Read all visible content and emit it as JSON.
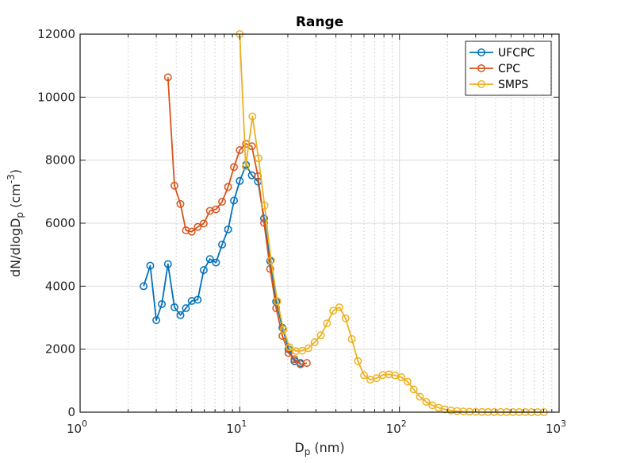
{
  "chart_data": {
    "type": "line",
    "title": "Range",
    "xlabel": {
      "main": "D",
      "sub": "p",
      "unit": " (nm)"
    },
    "ylabel": {
      "pre": "dN/dlogD",
      "sub": "p",
      "unit_open": "  (cm",
      "sup": "-3",
      "unit_close": ")"
    },
    "x_scale": "log",
    "xlim": [
      1,
      1000
    ],
    "ylim": [
      0,
      12000
    ],
    "x_ticks": [
      {
        "base": "10",
        "exp": "0"
      },
      {
        "base": "10",
        "exp": "1"
      },
      {
        "base": "10",
        "exp": "2"
      },
      {
        "base": "10",
        "exp": "3"
      }
    ],
    "y_ticks": [
      "0",
      "2000",
      "4000",
      "6000",
      "8000",
      "10000",
      "12000"
    ],
    "grid": true,
    "legend_position": "top-right",
    "series": [
      {
        "name": "UFCPC",
        "color": "#0072BD",
        "marker": "open-circle",
        "points": [
          [
            2.5,
            4000
          ],
          [
            2.75,
            4650
          ],
          [
            3.0,
            2920
          ],
          [
            3.25,
            3430
          ],
          [
            3.55,
            4700
          ],
          [
            3.9,
            3330
          ],
          [
            4.25,
            3080
          ],
          [
            4.6,
            3300
          ],
          [
            5.0,
            3530
          ],
          [
            5.45,
            3570
          ],
          [
            5.95,
            4510
          ],
          [
            6.5,
            4860
          ],
          [
            7.1,
            4750
          ],
          [
            7.75,
            5320
          ],
          [
            8.45,
            5800
          ],
          [
            9.2,
            6720
          ],
          [
            10.0,
            7340
          ],
          [
            10.95,
            7850
          ],
          [
            11.9,
            7520
          ],
          [
            13.0,
            7320
          ],
          [
            14.2,
            6150
          ],
          [
            15.5,
            4800
          ],
          [
            16.9,
            3510
          ],
          [
            18.5,
            2680
          ],
          [
            20.2,
            2000
          ],
          [
            22.0,
            1620
          ],
          [
            24.0,
            1560
          ]
        ]
      },
      {
        "name": "CPC",
        "color": "#D95319",
        "marker": "open-circle",
        "points": [
          [
            3.55,
            10630
          ],
          [
            3.9,
            7190
          ],
          [
            4.25,
            6610
          ],
          [
            4.6,
            5770
          ],
          [
            5.0,
            5730
          ],
          [
            5.45,
            5880
          ],
          [
            5.95,
            5990
          ],
          [
            6.5,
            6390
          ],
          [
            7.1,
            6440
          ],
          [
            7.75,
            6680
          ],
          [
            8.45,
            7150
          ],
          [
            9.2,
            7780
          ],
          [
            10.0,
            8320
          ],
          [
            10.95,
            8520
          ],
          [
            11.9,
            8440
          ],
          [
            13.0,
            7490
          ],
          [
            14.2,
            6010
          ],
          [
            15.5,
            4550
          ],
          [
            16.9,
            3300
          ],
          [
            18.5,
            2420
          ],
          [
            20.2,
            1880
          ],
          [
            22.0,
            1680
          ],
          [
            24.0,
            1520
          ],
          [
            26.3,
            1560
          ]
        ]
      },
      {
        "name": "SMPS",
        "color": "#EDB120",
        "marker": "open-circle",
        "points": [
          [
            10.0,
            12000
          ],
          [
            10.9,
            7800
          ],
          [
            12.0,
            9390
          ],
          [
            13.1,
            8060
          ],
          [
            14.3,
            6560
          ],
          [
            15.7,
            4820
          ],
          [
            17.2,
            3520
          ],
          [
            18.8,
            2620
          ],
          [
            20.5,
            2060
          ],
          [
            22.5,
            1940
          ],
          [
            24.6,
            1950
          ],
          [
            26.9,
            2030
          ],
          [
            29.4,
            2220
          ],
          [
            32.2,
            2440
          ],
          [
            35.2,
            2820
          ],
          [
            38.5,
            3220
          ],
          [
            42.0,
            3330
          ],
          [
            46.0,
            2980
          ],
          [
            50.3,
            2320
          ],
          [
            55.0,
            1620
          ],
          [
            60.1,
            1170
          ],
          [
            65.7,
            1030
          ],
          [
            71.9,
            1080
          ],
          [
            78.6,
            1180
          ],
          [
            86.0,
            1200
          ],
          [
            94.0,
            1170
          ],
          [
            102.8,
            1110
          ],
          [
            112.4,
            970
          ],
          [
            122.9,
            720
          ],
          [
            134.4,
            490
          ],
          [
            147.0,
            330
          ],
          [
            160.7,
            220
          ],
          [
            175.8,
            140
          ],
          [
            192.2,
            90
          ],
          [
            210.2,
            55
          ],
          [
            229.8,
            35
          ],
          [
            251.3,
            22
          ],
          [
            274.8,
            15
          ],
          [
            300.5,
            10
          ],
          [
            328.6,
            7
          ],
          [
            359.4,
            5
          ],
          [
            393.0,
            4
          ],
          [
            429.7,
            3
          ],
          [
            469.9,
            3
          ],
          [
            513.9,
            2
          ],
          [
            561.9,
            2
          ],
          [
            614.5,
            2
          ],
          [
            672.0,
            1
          ],
          [
            734.8,
            1
          ],
          [
            803.5,
            1
          ]
        ]
      }
    ]
  }
}
